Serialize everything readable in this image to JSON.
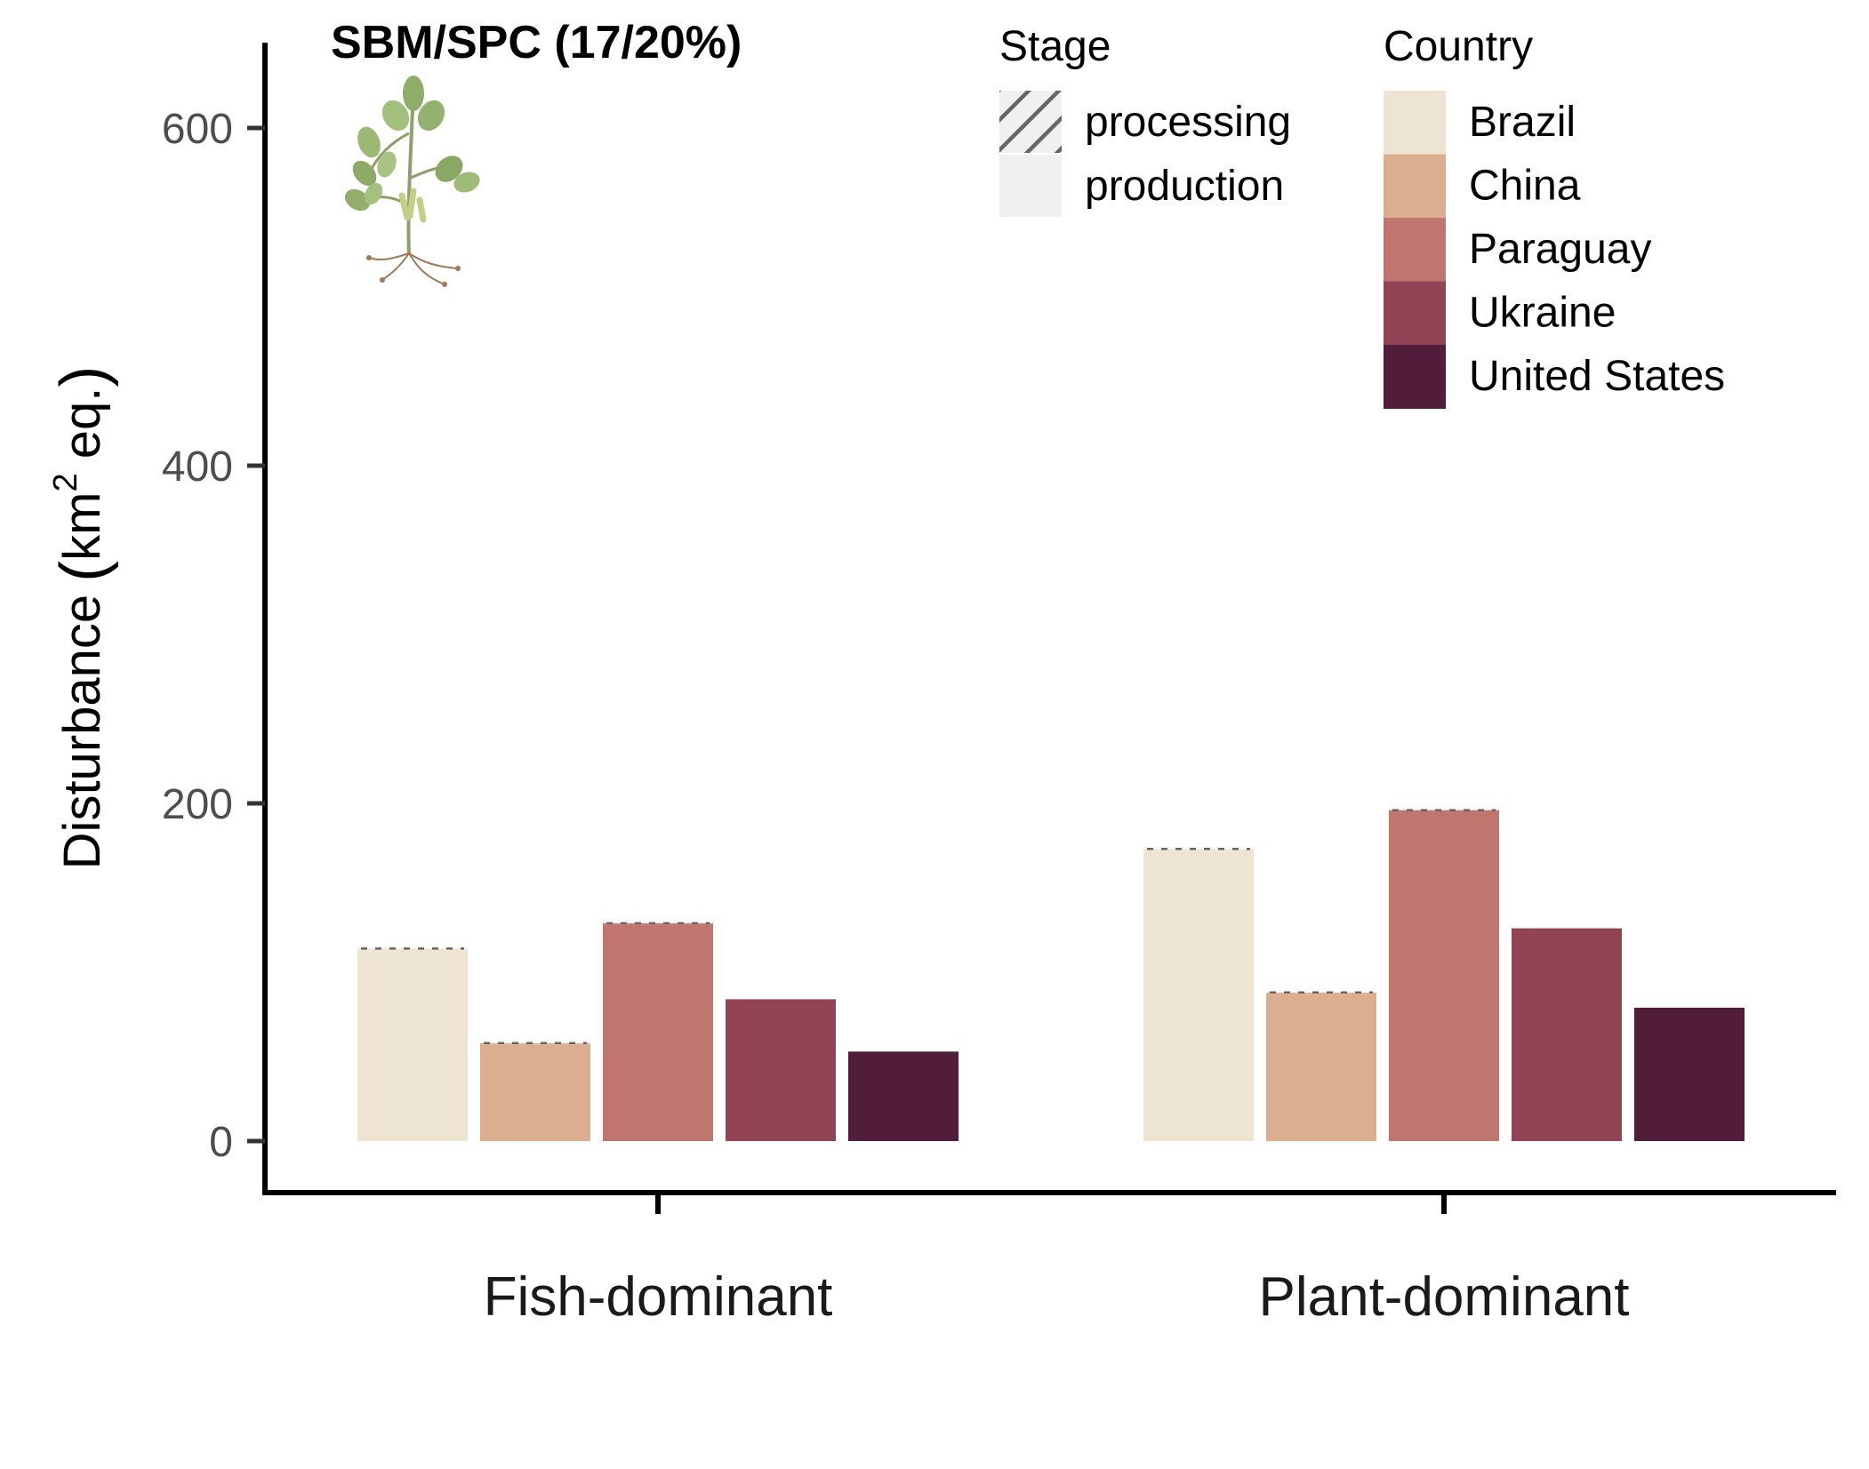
{
  "chart_data": {
    "type": "bar",
    "title": "SBM/SPC (17/20%)",
    "ylabel": "Disturbance",
    "ylabel_unit": "km",
    "ylabel_unit_power": "2",
    "ylabel_unit_suffix": " eq.",
    "categories": [
      "Fish-dominant",
      "Plant-dominant"
    ],
    "ylim": [
      -30,
      650
    ],
    "yticks": [
      0,
      200,
      400,
      600
    ],
    "grid": false,
    "legend_position": "top-right",
    "series": [
      {
        "name": "Brazil",
        "color": "#ede5d1",
        "production": [
          113,
          172
        ],
        "processing": [
          1,
          1
        ]
      },
      {
        "name": "China",
        "color": "#dbae90",
        "production": [
          57,
          87
        ],
        "processing": [
          1,
          1
        ]
      },
      {
        "name": "Paraguay",
        "color": "#c0756e",
        "production": [
          128,
          195
        ],
        "processing": [
          1,
          1
        ]
      },
      {
        "name": "Ukraine",
        "color": "#924457",
        "production": [
          84,
          126
        ],
        "processing": [
          0,
          0
        ]
      },
      {
        "name": "United States",
        "color": "#521d3a",
        "production": [
          53,
          79
        ],
        "processing": [
          0,
          0
        ]
      }
    ],
    "legend_stage": {
      "title": "Stage",
      "items": [
        {
          "label": "processing",
          "pattern": "hatched"
        },
        {
          "label": "production",
          "pattern": "none"
        }
      ]
    },
    "legend_country": {
      "title": "Country"
    },
    "icon": "soybean-plant-icon"
  }
}
